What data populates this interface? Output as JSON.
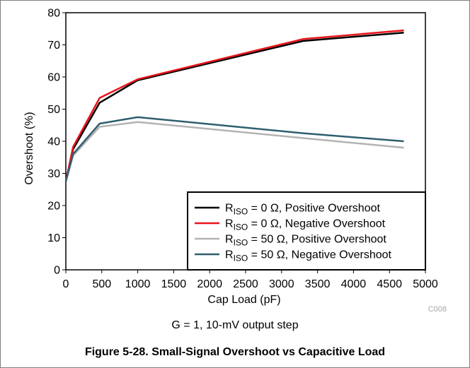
{
  "chart_data": {
    "type": "line",
    "xlabel": "Cap Load (pF)",
    "ylabel": "Overshoot (%)",
    "xlim": [
      0,
      5000
    ],
    "ylim": [
      0,
      80
    ],
    "xticks": [
      "0",
      "500",
      "1000",
      "1500",
      "2000",
      "2500",
      "3000",
      "3500",
      "4000",
      "4500",
      "5000"
    ],
    "yticks": [
      "0",
      "10",
      "20",
      "30",
      "40",
      "50",
      "60",
      "70",
      "80"
    ],
    "grid": false,
    "legend_position": "bottom-right",
    "series": [
      {
        "name": "R_ISO = 0 Ω, Positive Overshoot",
        "name_main": "R",
        "name_sub": "ISO",
        "name_rest": " = 0 Ω, Positive Overshoot",
        "color": "#000000",
        "x": [
          0,
          100,
          470,
          1000,
          3300,
          4700
        ],
        "y": [
          27.5,
          37.5,
          52,
          59,
          71.2,
          73.8
        ]
      },
      {
        "name": "R_ISO = 0 Ω, Negative Overshoot",
        "name_main": "R",
        "name_sub": "ISO",
        "name_rest": " = 0 Ω, Negative Overshoot",
        "color": "#e8141c",
        "x": [
          0,
          100,
          470,
          1000,
          3300,
          4700
        ],
        "y": [
          27.5,
          38.2,
          53.5,
          59.3,
          71.8,
          74.5
        ]
      },
      {
        "name": "R_ISO = 50 Ω, Positive Overshoot",
        "name_main": "R",
        "name_sub": "ISO",
        "name_rest": " = 50 Ω, Positive Overshoot",
        "color": "#b3b3b3",
        "x": [
          0,
          100,
          470,
          1000,
          3300,
          4700
        ],
        "y": [
          27.5,
          35.5,
          44.5,
          46,
          41,
          38
        ]
      },
      {
        "name": "R_ISO = 50 Ω, Negative Overshoot",
        "name_main": "R",
        "name_sub": "ISO",
        "name_rest": " = 50 Ω, Negative Overshoot",
        "color": "#2f5e6e",
        "x": [
          0,
          100,
          470,
          1000,
          3300,
          4700
        ],
        "y": [
          27.5,
          36,
          45.5,
          47.5,
          42.5,
          40
        ]
      }
    ],
    "code": "C008"
  },
  "subtitle": "G = 1, 10-mV output step",
  "caption": "Figure 5-28. Small-Signal Overshoot vs Capacitive Load"
}
